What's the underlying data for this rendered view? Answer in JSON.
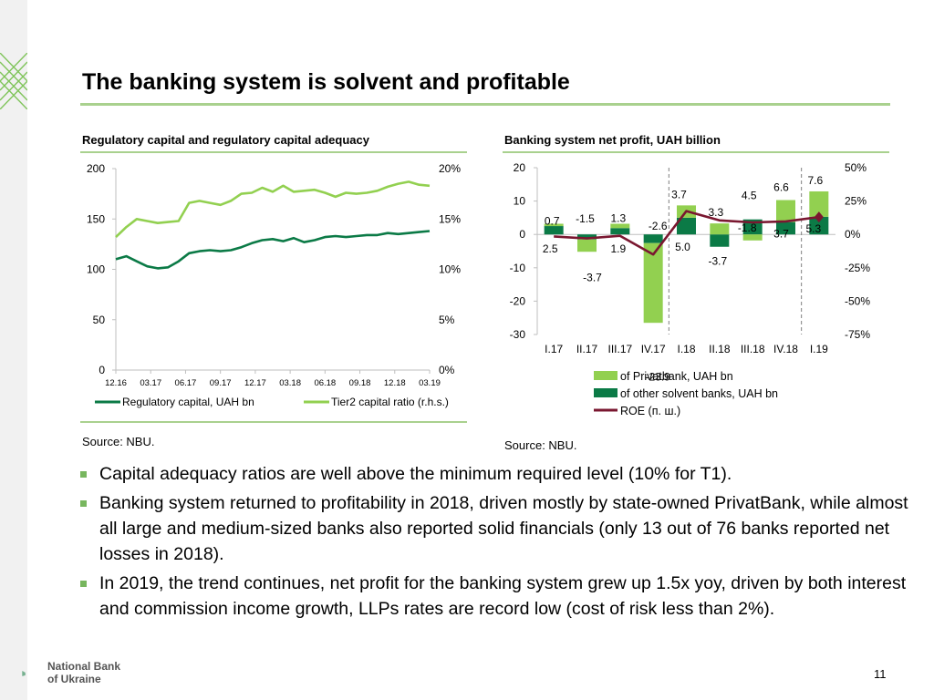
{
  "title": "The banking system is solvent and profitable",
  "left_panel": {
    "subtitle": "Regulatory capital and regulatory capital adequacy",
    "source": "Source: NBU."
  },
  "right_panel": {
    "subtitle": "Banking system net profit, UAH billion",
    "source": "Source: NBU."
  },
  "bullets": [
    "Capital adequacy ratios are well above the minimum required level (10% for T1).",
    "Banking system returned to profitability in 2018, driven mostly by state-owned PrivatBank, while almost all large and medium-sized banks also reported solid financials (only 13 out of 76 banks reported net losses in 2018).",
    "In 2019, the trend continues, net profit for the banking system grew up 1.5x yoy, driven by both interest and commission income growth, LLPs rates are record low (cost of risk less than 2%)."
  ],
  "logo": {
    "line1": "National Bank",
    "line2": "of Ukraine"
  },
  "page_number": "11",
  "colors": {
    "light_green": "#92d050",
    "dark_green": "#0b7a46",
    "line_dark": "#0b7a46",
    "line_light": "#92d050",
    "roe": "#7a1730",
    "accent": "#a9d18e"
  },
  "chart_data": [
    {
      "type": "line",
      "title": "Regulatory capital and regulatory capital adequacy",
      "x_ticks": [
        "12.16",
        "03.17",
        "06.17",
        "09.17",
        "12.17",
        "03.18",
        "06.18",
        "09.18",
        "12.18",
        "03.19"
      ],
      "ylim": [
        0,
        200
      ],
      "y_ticks": [
        "200",
        "150",
        "100",
        "50",
        "0"
      ],
      "y2lim": [
        0,
        20
      ],
      "y2_ticks": [
        "20%",
        "15%",
        "10%",
        "5%",
        "0%"
      ],
      "series": [
        {
          "name": "Regulatory capital, UAH bn",
          "axis": "left",
          "values": [
            110,
            113,
            108,
            103,
            101,
            102,
            108,
            116,
            118,
            119,
            118,
            119,
            122,
            126,
            129,
            130,
            128,
            131,
            127,
            129,
            132,
            133,
            132,
            133,
            134,
            134,
            136,
            135,
            136,
            137,
            138
          ]
        },
        {
          "name": "Tier2 capital ratio (r.h.s.)",
          "axis": "right",
          "values": [
            13.2,
            14.2,
            15.0,
            14.8,
            14.6,
            14.7,
            14.8,
            16.6,
            16.8,
            16.6,
            16.4,
            16.8,
            17.5,
            17.6,
            18.1,
            17.7,
            18.3,
            17.7,
            17.8,
            17.9,
            17.6,
            17.2,
            17.6,
            17.5,
            17.6,
            17.8,
            18.2,
            18.5,
            18.7,
            18.4,
            18.3
          ]
        }
      ],
      "legend": "bottom"
    },
    {
      "type": "bar",
      "title": "Banking system net profit, UAH billion",
      "categories": [
        "I.17",
        "II.17",
        "III.17",
        "IV.17",
        "I.18",
        "II.18",
        "III.18",
        "IV.18",
        "I.19"
      ],
      "ylim": [
        -30,
        20
      ],
      "y_ticks": [
        "20",
        "10",
        "0",
        "-10",
        "-20",
        "-30"
      ],
      "y2lim": [
        -75,
        50
      ],
      "y2_ticks": [
        "50%",
        "25%",
        "0%",
        "-25%",
        "-50%",
        "-75%"
      ],
      "series": [
        {
          "name": "of Privatbank, UAH bn",
          "values": [
            0.7,
            -3.7,
            1.3,
            -23.9,
            3.7,
            3.3,
            -1.8,
            6.6,
            7.6
          ],
          "labels": [
            "0.7",
            "-3.7",
            "1.3",
            "-23.9",
            "3.7",
            "3.3",
            "-1.8",
            "6.6",
            "7.6"
          ]
        },
        {
          "name": "of other solvent banks, UAH bn",
          "values": [
            2.5,
            -1.5,
            1.9,
            -2.6,
            5.0,
            -3.7,
            4.5,
            3.7,
            5.3
          ],
          "labels": [
            "2.5",
            "-1.5",
            "1.9",
            "-2.6",
            "5.0",
            "-3.7",
            "4.5",
            "3.7",
            "5.3"
          ]
        },
        {
          "name": "ROE (п. ш.)",
          "axis": "right",
          "values": [
            -1.5,
            -3.0,
            -1.0,
            -15.0,
            17.5,
            10.5,
            9.0,
            9.8,
            13.0
          ],
          "last_marker": "diamond"
        }
      ],
      "legend": "bottom"
    }
  ]
}
